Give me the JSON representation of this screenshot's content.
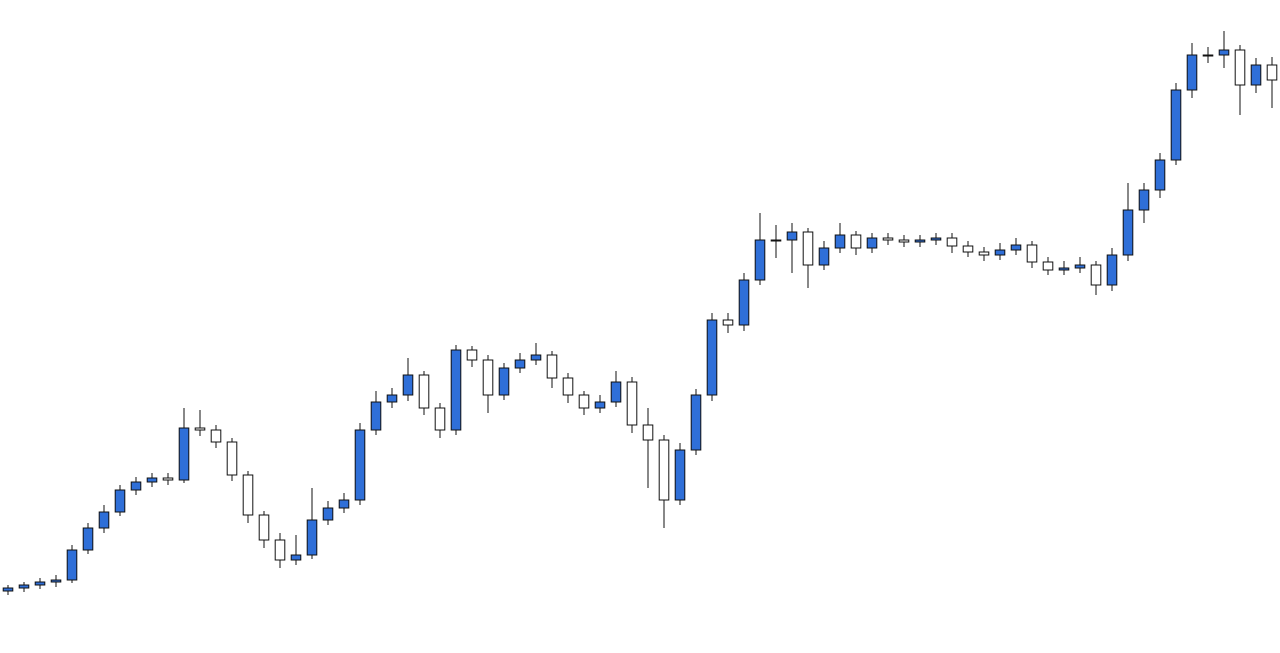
{
  "chart_data": {
    "type": "candlestick",
    "open": [
      62,
      65,
      68,
      71,
      73,
      103,
      125,
      141,
      163,
      171,
      175,
      173,
      225,
      223,
      211,
      178,
      138,
      113,
      93,
      98,
      133,
      145,
      153,
      223,
      251,
      258,
      278,
      245,
      223,
      303,
      293,
      258,
      285,
      293,
      298,
      275,
      258,
      245,
      251,
      271,
      228,
      213,
      153,
      203,
      258,
      333,
      328,
      373,
      413,
      413,
      421,
      388,
      405,
      418,
      405,
      415,
      413,
      411,
      413,
      415,
      407,
      401,
      398,
      403,
      408,
      391,
      383,
      385,
      388,
      368,
      398,
      443,
      463,
      493,
      563,
      598,
      598,
      603,
      568,
      588
    ],
    "high": [
      68,
      71,
      75,
      78,
      108,
      130,
      148,
      168,
      176,
      180,
      180,
      245,
      243,
      228,
      215,
      182,
      142,
      120,
      118,
      165,
      152,
      160,
      230,
      262,
      265,
      295,
      282,
      250,
      308,
      307,
      298,
      290,
      300,
      310,
      302,
      280,
      262,
      258,
      282,
      276,
      245,
      218,
      210,
      264,
      340,
      340,
      380,
      440,
      428,
      430,
      425,
      412,
      430,
      422,
      420,
      420,
      418,
      418,
      420,
      420,
      412,
      406,
      410,
      415,
      412,
      396,
      392,
      396,
      392,
      405,
      470,
      470,
      500,
      570,
      610,
      606,
      622,
      608,
      595,
      596
    ],
    "low": [
      58,
      61,
      64,
      66,
      70,
      99,
      120,
      137,
      158,
      166,
      168,
      170,
      217,
      205,
      172,
      130,
      105,
      85,
      88,
      94,
      128,
      140,
      148,
      218,
      245,
      252,
      238,
      215,
      218,
      286,
      240,
      253,
      280,
      288,
      265,
      250,
      238,
      240,
      246,
      220,
      165,
      125,
      148,
      198,
      252,
      320,
      322,
      368,
      395,
      380,
      365,
      383,
      400,
      398,
      400,
      408,
      406,
      406,
      408,
      400,
      396,
      392,
      393,
      398,
      385,
      378,
      378,
      380,
      358,
      362,
      392,
      430,
      455,
      488,
      555,
      590,
      585,
      538,
      560,
      545
    ],
    "close": [
      65,
      68,
      71,
      73,
      103,
      125,
      141,
      163,
      171,
      175,
      173,
      225,
      223,
      211,
      178,
      138,
      113,
      93,
      98,
      133,
      145,
      153,
      223,
      251,
      258,
      278,
      245,
      223,
      303,
      293,
      258,
      285,
      293,
      298,
      275,
      258,
      245,
      251,
      271,
      228,
      213,
      153,
      203,
      258,
      333,
      328,
      373,
      413,
      413,
      421,
      388,
      405,
      418,
      405,
      415,
      413,
      411,
      413,
      415,
      407,
      401,
      398,
      403,
      408,
      391,
      383,
      385,
      388,
      368,
      398,
      443,
      463,
      493,
      563,
      598,
      598,
      603,
      568,
      588,
      573
    ],
    "up_color": "#2f6fd8",
    "down_color": "#ffffff",
    "edge_color": "#111111",
    "ylim": [
      0,
      653
    ]
  }
}
